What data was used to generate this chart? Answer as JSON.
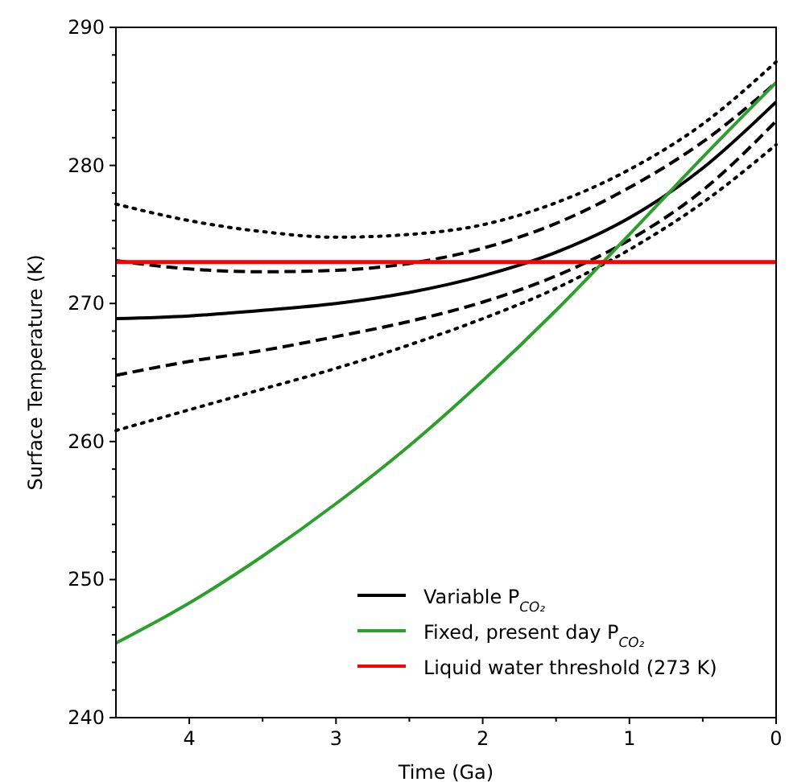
{
  "chart_data": {
    "type": "line",
    "xlabel": "Time (Ga)",
    "ylabel": "Surface Temperature (K)",
    "xlim": [
      4.5,
      0
    ],
    "xticks": [
      4,
      3,
      2,
      1,
      0,
      {
        "value": 3.5,
        "label": null
      },
      {
        "value": 2.5,
        "label": null
      },
      {
        "value": 1.5,
        "label": null
      },
      {
        "value": 0.5,
        "label": null
      }
    ],
    "ylim": [
      240,
      290
    ],
    "yticks": [
      240,
      250,
      260,
      270,
      280,
      290,
      {
        "value": 242,
        "label": null
      },
      {
        "value": 244,
        "label": null
      },
      {
        "value": 246,
        "label": null
      },
      {
        "value": 248,
        "label": null
      },
      {
        "value": 252,
        "label": null
      },
      {
        "value": 254,
        "label": null
      },
      {
        "value": 256,
        "label": null
      },
      {
        "value": 258,
        "label": null
      },
      {
        "value": 262,
        "label": null
      },
      {
        "value": 264,
        "label": null
      },
      {
        "value": 266,
        "label": null
      },
      {
        "value": 268,
        "label": null
      },
      {
        "value": 272,
        "label": null
      },
      {
        "value": 274,
        "label": null
      },
      {
        "value": 276,
        "label": null
      },
      {
        "value": 278,
        "label": null
      },
      {
        "value": 282,
        "label": null
      },
      {
        "value": 284,
        "label": null
      },
      {
        "value": 286,
        "label": null
      },
      {
        "value": 288,
        "label": null
      }
    ],
    "x": [
      4.5,
      4,
      3.5,
      3,
      2.5,
      2,
      1.5,
      1,
      0.5,
      0
    ],
    "series": [
      {
        "name": "Variable P$_{CO₂}$",
        "color": "#000000",
        "line_style": "solid",
        "values": [
          268.9,
          269.1,
          269.5,
          270.0,
          270.8,
          272.0,
          273.7,
          276.2,
          279.8,
          284.6
        ]
      },
      {
        "color": "#000000",
        "line_style": "dashed",
        "values": [
          273.1,
          272.5,
          272.3,
          272.4,
          272.9,
          274.0,
          275.8,
          278.4,
          281.7,
          286.0
        ]
      },
      {
        "color": "#000000",
        "line_style": "dashed",
        "values": [
          264.8,
          265.8,
          266.6,
          267.6,
          268.7,
          270.1,
          272.0,
          274.6,
          278.2,
          283.2
        ]
      },
      {
        "color": "#000000",
        "line_style": "dotted",
        "values": [
          277.2,
          276.0,
          275.2,
          274.8,
          275.0,
          275.7,
          277.3,
          279.7,
          283.0,
          287.5
        ]
      },
      {
        "color": "#000000",
        "line_style": "dotted",
        "values": [
          260.8,
          262.3,
          263.8,
          265.3,
          267.0,
          268.9,
          271.1,
          273.9,
          277.3,
          281.5
        ]
      },
      {
        "name": "Fixed, present day P$_{CO₂}$",
        "color": "#2ca02c",
        "line_style": "solid",
        "values": [
          245.4,
          248.3,
          251.7,
          255.5,
          259.7,
          264.4,
          269.5,
          275.0,
          280.6,
          286.0
        ]
      }
    ],
    "ref_lines": [
      {
        "axis": "y",
        "value": 273,
        "label": "Liquid water threshold (273 K)",
        "color": "#ff0000"
      }
    ],
    "legend": "bottom right",
    "grid": false
  }
}
